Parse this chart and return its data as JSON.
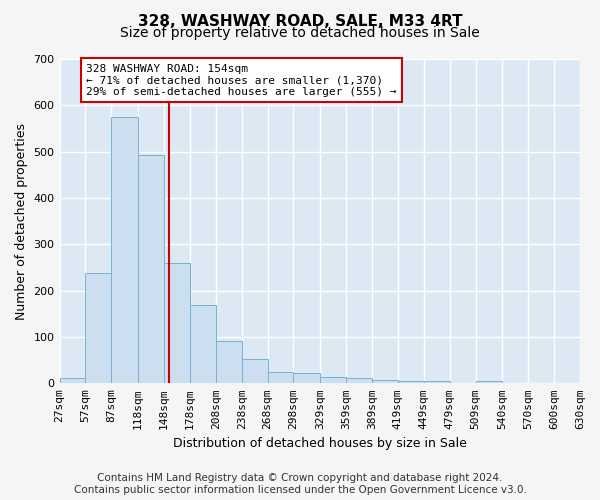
{
  "title": "328, WASHWAY ROAD, SALE, M33 4RT",
  "subtitle": "Size of property relative to detached houses in Sale",
  "xlabel": "Distribution of detached houses by size in Sale",
  "ylabel": "Number of detached properties",
  "bar_color": "#ccdff0",
  "bar_edge_color": "#7aafd4",
  "background_color": "#dce9f5",
  "figure_bg_color": "#f5f5f5",
  "grid_color": "#ffffff",
  "annotation_line_color": "#cc0000",
  "annotation_box_edge_color": "#cc0000",
  "annotation_text_line1": "328 WASHWAY ROAD: 154sqm",
  "annotation_text_line2": "← 71% of detached houses are smaller (1,370)",
  "annotation_text_line3": "29% of semi-detached houses are larger (555) →",
  "property_size": 154,
  "bin_edges": [
    27,
    57,
    87,
    118,
    148,
    178,
    208,
    238,
    268,
    298,
    329,
    359,
    389,
    419,
    449,
    479,
    509,
    540,
    570,
    600,
    630
  ],
  "bin_labels": [
    "27sqm",
    "57sqm",
    "87sqm",
    "118sqm",
    "148sqm",
    "178sqm",
    "208sqm",
    "238sqm",
    "268sqm",
    "298sqm",
    "329sqm",
    "359sqm",
    "389sqm",
    "419sqm",
    "449sqm",
    "479sqm",
    "509sqm",
    "540sqm",
    "570sqm",
    "600sqm",
    "630sqm"
  ],
  "bar_heights": [
    12,
    238,
    575,
    492,
    260,
    168,
    91,
    52,
    25,
    22,
    13,
    11,
    8,
    5,
    4,
    0,
    5,
    0,
    0,
    0
  ],
  "ylim": [
    0,
    700
  ],
  "yticks": [
    0,
    100,
    200,
    300,
    400,
    500,
    600,
    700
  ],
  "footer_line1": "Contains HM Land Registry data © Crown copyright and database right 2024.",
  "footer_line2": "Contains public sector information licensed under the Open Government Licence v3.0.",
  "title_fontsize": 11,
  "subtitle_fontsize": 10,
  "axis_label_fontsize": 9,
  "tick_fontsize": 8,
  "annotation_fontsize": 8,
  "footer_fontsize": 7.5
}
